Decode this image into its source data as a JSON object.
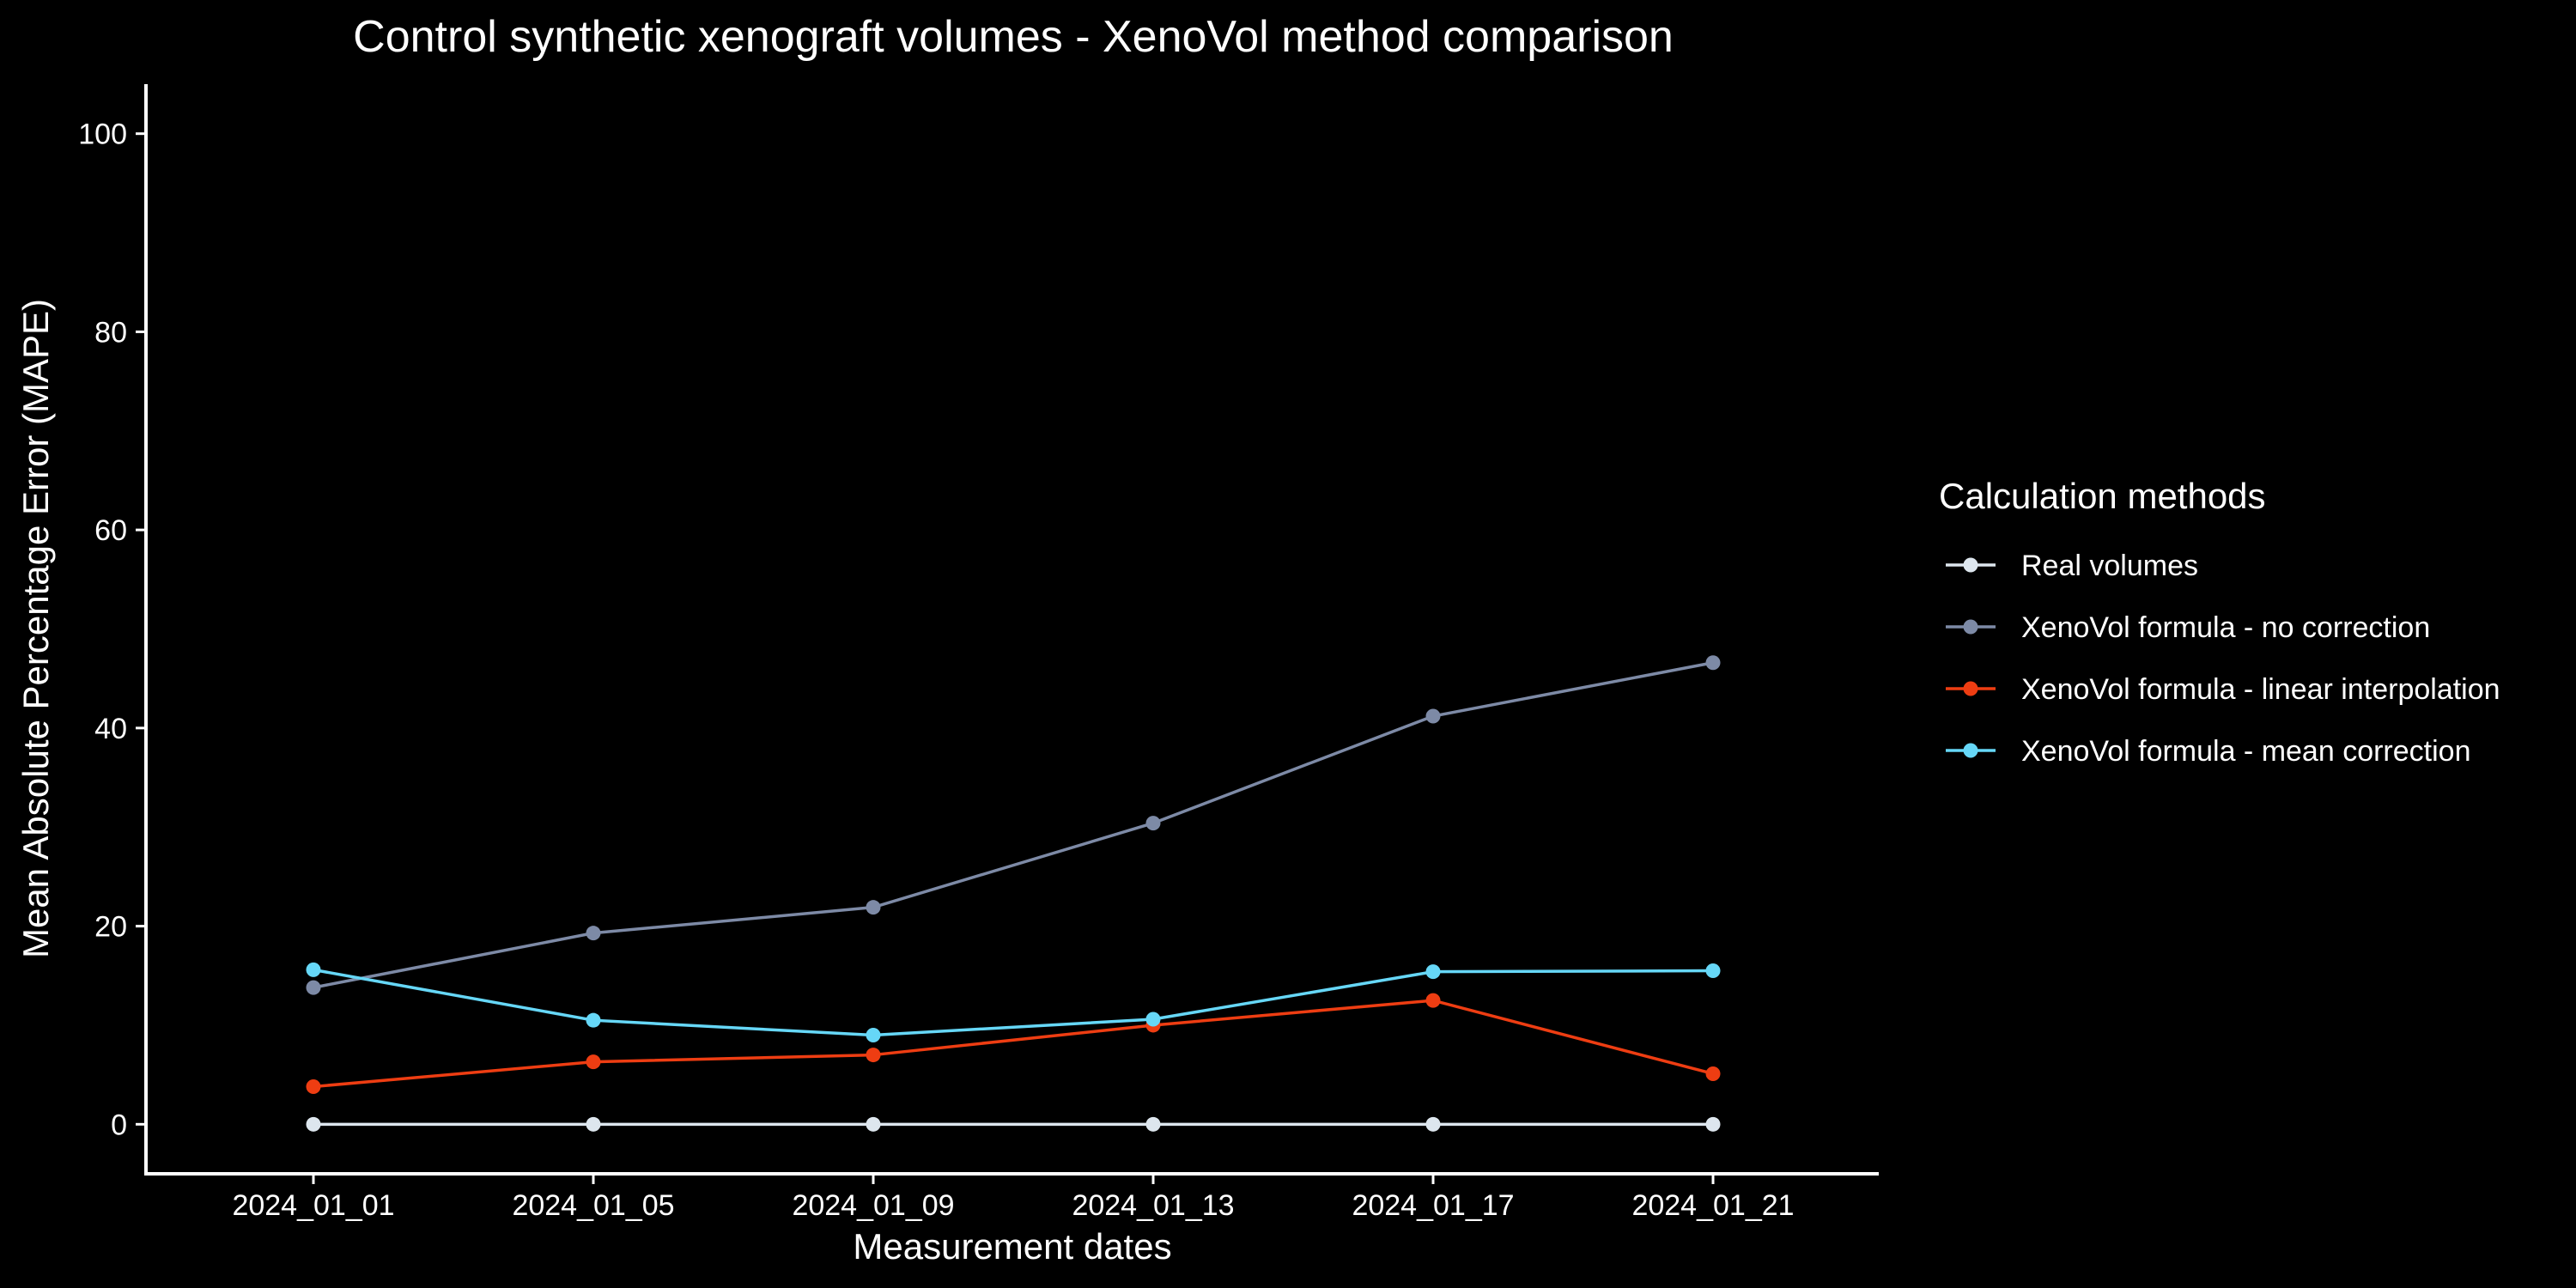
{
  "chart_data": {
    "type": "line",
    "title": "Control synthetic xenograft volumes - XenoVol method comparison",
    "xlabel": "Measurement dates",
    "ylabel": "Mean Absolute Percentage Error (MAPE)",
    "categories": [
      "2024_01_01",
      "2024_01_05",
      "2024_01_09",
      "2024_01_13",
      "2024_01_17",
      "2024_01_21"
    ],
    "ylim": [
      -5,
      105
    ],
    "yticks": [
      0,
      20,
      40,
      60,
      80,
      100
    ],
    "grid": false,
    "legend": {
      "title": "Calculation methods",
      "placement": "right"
    },
    "series": [
      {
        "name": "Real volumes",
        "color": "#dde6ee",
        "values": [
          0,
          0,
          0,
          0,
          0,
          0
        ]
      },
      {
        "name": "XenoVol formula - no correction",
        "color": "#7d8aa6",
        "values": [
          13.8,
          19.3,
          21.9,
          30.4,
          41.2,
          46.6
        ]
      },
      {
        "name": "XenoVol formula - linear interpolation",
        "color": "#ee3d12",
        "values": [
          3.8,
          6.3,
          7.0,
          10.0,
          12.5,
          5.1
        ]
      },
      {
        "name": "XenoVol formula - mean correction",
        "color": "#66d7f7",
        "values": [
          15.6,
          10.5,
          9.0,
          10.6,
          15.4,
          15.5
        ]
      }
    ]
  }
}
